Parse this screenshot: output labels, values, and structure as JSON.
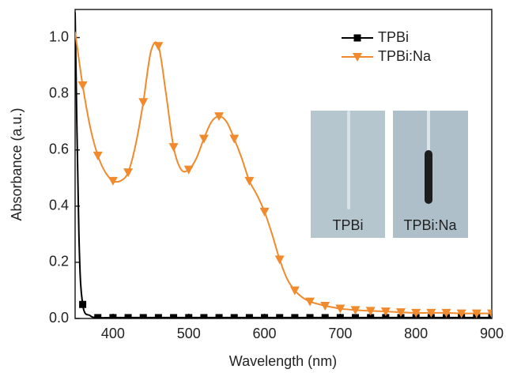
{
  "chart_data": {
    "type": "line",
    "x_label": "Wavelength (nm)",
    "y_label": "Absorbance (a.u.)",
    "xlim": [
      350,
      900
    ],
    "ylim": [
      0,
      1.1
    ],
    "xticks": [
      400,
      500,
      600,
      700,
      800,
      900
    ],
    "yticks": [
      {
        "value": 0,
        "label": "0.0"
      },
      {
        "value": 0.2,
        "label": "0.2"
      },
      {
        "value": 0.4,
        "label": "0.4"
      },
      {
        "value": 0.6,
        "label": "0.6"
      },
      {
        "value": 0.8,
        "label": "0.8"
      },
      {
        "value": 1.0,
        "label": "1.0"
      }
    ],
    "legend": "upper right",
    "series": [
      {
        "name": "TPBi",
        "color": "#000000",
        "marker": "square",
        "x": [
          350,
          355,
          360,
          370,
          380,
          400,
          420,
          440,
          460,
          480,
          500,
          520,
          540,
          560,
          580,
          600,
          620,
          640,
          660,
          680,
          700,
          720,
          740,
          760,
          780,
          800,
          820,
          840,
          860,
          880,
          900
        ],
        "values": [
          1.09,
          0.3,
          0.05,
          0.01,
          0.003,
          0.003,
          0.003,
          0.003,
          0.003,
          0.003,
          0.003,
          0.003,
          0.003,
          0.003,
          0.003,
          0.003,
          0.003,
          0.003,
          0.003,
          0.003,
          0.003,
          0.003,
          0.003,
          0.003,
          0.003,
          0.003,
          0.003,
          0.003,
          0.003,
          0.003,
          0.003
        ]
      },
      {
        "name": "TPBi:Na",
        "color": "#f08a2c",
        "marker": "triangle-down",
        "x": [
          350,
          360,
          370,
          380,
          390,
          400,
          410,
          420,
          430,
          440,
          450,
          460,
          470,
          480,
          490,
          500,
          510,
          520,
          530,
          540,
          550,
          560,
          570,
          580,
          590,
          600,
          610,
          620,
          630,
          640,
          650,
          660,
          670,
          680,
          690,
          700,
          720,
          740,
          760,
          780,
          800,
          820,
          840,
          860,
          880,
          900
        ],
        "values": [
          1.02,
          0.83,
          0.68,
          0.58,
          0.52,
          0.49,
          0.49,
          0.52,
          0.62,
          0.77,
          0.95,
          0.97,
          0.8,
          0.61,
          0.53,
          0.53,
          0.57,
          0.64,
          0.7,
          0.72,
          0.7,
          0.64,
          0.57,
          0.49,
          0.44,
          0.38,
          0.3,
          0.21,
          0.14,
          0.1,
          0.075,
          0.06,
          0.052,
          0.045,
          0.04,
          0.035,
          0.03,
          0.027,
          0.025,
          0.022,
          0.02,
          0.02,
          0.02,
          0.018,
          0.018,
          0.018
        ]
      }
    ]
  },
  "inset": {
    "labels": [
      "TPBi",
      "TPBi:Na"
    ]
  }
}
